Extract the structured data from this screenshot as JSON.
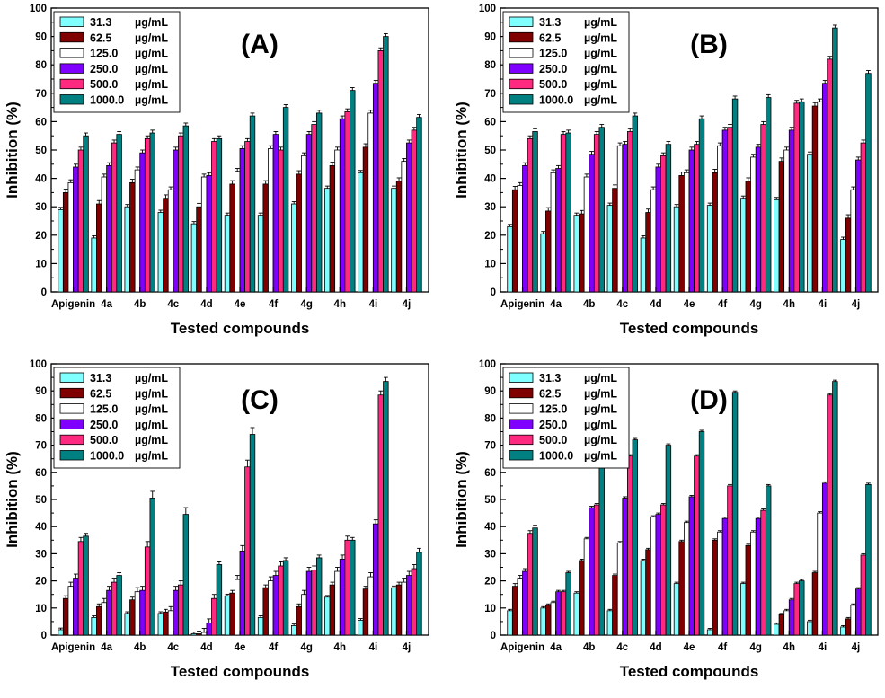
{
  "figure": {
    "legend_entries": [
      {
        "conc": "31.3",
        "unit": "µg/mL"
      },
      {
        "conc": "62.5",
        "unit": "µg/mL"
      },
      {
        "conc": "125.0",
        "unit": "µg/mL"
      },
      {
        "conc": "250.0",
        "unit": "µg/mL"
      },
      {
        "conc": "500.0",
        "unit": "µg/mL"
      },
      {
        "conc": "1000.0",
        "unit": "µg/mL"
      }
    ],
    "series_colors": [
      "#7fffff",
      "#800000",
      "#ffffff",
      "#7f00ff",
      "#ff2a7f",
      "#008080"
    ]
  },
  "chart_data": [
    {
      "type": "bar",
      "panel_label": "(A)",
      "xlabel": "Tested compounds",
      "ylabel": "Inhibition (%)",
      "ylim": [
        0,
        100
      ],
      "yticks": [
        "0",
        "10",
        "20",
        "30",
        "40",
        "50",
        "60",
        "70",
        "80",
        "90",
        "100"
      ],
      "categories": [
        "Apigenin",
        "4a",
        "4b",
        "4c",
        "4d",
        "4e",
        "4f",
        "4g",
        "4h",
        "4i",
        "4j"
      ],
      "series": [
        {
          "name": "31.3 µg/mL",
          "values": [
            29,
            19,
            30,
            28,
            24,
            27,
            27,
            31,
            36.5,
            42,
            36.5
          ],
          "errors": [
            0.8,
            0.8,
            0.8,
            0.8,
            0.8,
            0.8,
            0.8,
            0.8,
            0.8,
            0.8,
            0.8
          ]
        },
        {
          "name": "62.5 µg/mL",
          "values": [
            35,
            31,
            38.5,
            33,
            30,
            38,
            38,
            41.5,
            44.5,
            51,
            39
          ],
          "errors": [
            1.2,
            1.2,
            1.2,
            1.2,
            1.2,
            1.2,
            1.2,
            1.2,
            1.2,
            1.2,
            1.2
          ]
        },
        {
          "name": "125.0 µg/mL",
          "values": [
            38.5,
            40.5,
            43,
            36,
            40.5,
            42.5,
            50.5,
            48,
            50,
            63,
            46
          ],
          "errors": [
            1,
            1,
            1,
            1,
            1,
            1,
            1,
            1,
            1,
            1,
            1
          ]
        },
        {
          "name": "250.0 µg/mL",
          "values": [
            44,
            44.5,
            49,
            50,
            41,
            50.5,
            55.5,
            55.5,
            61,
            73.5,
            52.5
          ],
          "errors": [
            1,
            1,
            1,
            1,
            1,
            1,
            1,
            1,
            1,
            1,
            1
          ]
        },
        {
          "name": "500.0 µg/mL",
          "values": [
            50,
            52.5,
            54,
            55,
            53,
            53,
            50,
            59,
            63.5,
            85,
            57
          ],
          "errors": [
            1,
            1,
            1,
            1,
            1,
            1,
            1,
            1,
            1,
            1,
            1
          ]
        },
        {
          "name": "1000.0 µg/mL",
          "values": [
            55,
            55.5,
            56,
            58.5,
            54,
            62,
            65,
            63,
            71,
            90,
            61.5
          ],
          "errors": [
            1,
            1,
            1,
            1,
            1,
            1,
            1,
            1,
            1,
            1,
            1
          ]
        }
      ]
    },
    {
      "type": "bar",
      "panel_label": "(B)",
      "xlabel": "Tested compounds",
      "ylabel": "Inhibition (%)",
      "ylim": [
        0,
        100
      ],
      "yticks": [
        "0",
        "10",
        "20",
        "30",
        "40",
        "50",
        "60",
        "70",
        "80",
        "90",
        "100"
      ],
      "categories": [
        "Apigenin",
        "4a",
        "4b",
        "4c",
        "4d",
        "4e",
        "4f",
        "4g",
        "4h",
        "4i",
        "4j"
      ],
      "series": [
        {
          "name": "31.3 µg/mL",
          "values": [
            23,
            20.5,
            27,
            30.5,
            19,
            30,
            30.5,
            33,
            32.5,
            48.5,
            18.5
          ],
          "errors": [
            0.8,
            0.8,
            0.8,
            0.8,
            0.8,
            0.8,
            0.8,
            0.8,
            0.8,
            0.8,
            0.8
          ]
        },
        {
          "name": "62.5 µg/mL",
          "values": [
            36,
            28.5,
            27.5,
            36.5,
            28,
            41,
            42,
            39,
            46,
            65.5,
            26
          ],
          "errors": [
            1.2,
            1.2,
            1.2,
            1.2,
            1.2,
            1.2,
            1.2,
            1.2,
            1.2,
            1.2,
            1.2
          ]
        },
        {
          "name": "125.0 µg/mL",
          "values": [
            37.5,
            42,
            40.5,
            51.5,
            36,
            42,
            51.5,
            47.5,
            50,
            67,
            36
          ],
          "errors": [
            1,
            1,
            1,
            1,
            1,
            1,
            1,
            1,
            1,
            1,
            1
          ]
        },
        {
          "name": "250.0 µg/mL",
          "values": [
            44.5,
            43.5,
            48.5,
            52,
            44,
            50,
            57,
            51,
            57,
            73.5,
            46.5
          ],
          "errors": [
            1,
            1,
            1,
            1,
            1,
            1,
            1,
            1,
            1,
            1,
            1
          ]
        },
        {
          "name": "500.0 µg/mL",
          "values": [
            54,
            55.5,
            55.5,
            56.5,
            48,
            52,
            58,
            59,
            66.5,
            82,
            52.5
          ],
          "errors": [
            1,
            1,
            1,
            1,
            1,
            1,
            1,
            1,
            1,
            1,
            1
          ]
        },
        {
          "name": "1000.0 µg/mL",
          "values": [
            56.5,
            56,
            58,
            62,
            52,
            61,
            68,
            68.5,
            67,
            93,
            77
          ],
          "errors": [
            1,
            1,
            1,
            1,
            1,
            1,
            1,
            1,
            1,
            1,
            1
          ]
        }
      ]
    },
    {
      "type": "bar",
      "panel_label": "(C)",
      "xlabel": "Tested compounds",
      "ylabel": "Inhibition (%)",
      "ylim": [
        0,
        100
      ],
      "yticks": [
        "0",
        "10",
        "20",
        "30",
        "40",
        "50",
        "60",
        "70",
        "80",
        "90",
        "100"
      ],
      "categories": [
        "Apigenin",
        "4a",
        "4b",
        "4c",
        "4d",
        "4e",
        "4f",
        "4g",
        "4h",
        "4i",
        "4j"
      ],
      "series": [
        {
          "name": "31.3 µg/mL",
          "values": [
            2,
            6.5,
            8,
            8,
            0.5,
            14.5,
            6.5,
            3.5,
            14,
            5.5,
            17.5
          ],
          "errors": [
            0.6,
            0.6,
            0.6,
            0.6,
            0.6,
            0.6,
            0.6,
            0.6,
            0.6,
            0.6,
            0.6
          ]
        },
        {
          "name": "62.5 µg/mL",
          "values": [
            13.5,
            10.5,
            13,
            8.5,
            0.5,
            15.5,
            17.5,
            10.5,
            18.5,
            17,
            18.5
          ],
          "errors": [
            1,
            1,
            1,
            1,
            1,
            1,
            1,
            1,
            1,
            1,
            1
          ]
        },
        {
          "name": "125.0 µg/mL",
          "values": [
            18,
            12,
            16,
            9,
            1,
            20.5,
            20,
            15,
            23.5,
            21.5,
            19.5
          ],
          "errors": [
            1.5,
            1.5,
            1.5,
            1.5,
            1.5,
            1.5,
            1.5,
            1.5,
            1.5,
            1.5,
            1.5
          ]
        },
        {
          "name": "250.0 µg/mL",
          "values": [
            21,
            16.5,
            16.5,
            16.5,
            4.5,
            31,
            22,
            23.5,
            28,
            41,
            22
          ],
          "errors": [
            1.5,
            1.5,
            1.5,
            1.5,
            1.5,
            2,
            1.5,
            1.5,
            1.5,
            1.5,
            1.5
          ]
        },
        {
          "name": "500.0 µg/mL",
          "values": [
            34.5,
            19.5,
            32.5,
            18.5,
            13.5,
            62,
            25.5,
            24,
            35,
            88.5,
            24.5
          ],
          "errors": [
            1.5,
            1.5,
            2,
            1.5,
            1.5,
            2.5,
            1.5,
            1.5,
            1.5,
            1.5,
            1.5
          ]
        },
        {
          "name": "1000.0 µg/mL",
          "values": [
            36.5,
            22,
            50.5,
            44.5,
            26,
            74,
            27.5,
            28.5,
            35,
            93.5,
            30.5
          ],
          "errors": [
            1,
            1,
            2.5,
            2.5,
            1,
            2.5,
            1,
            1,
            1,
            1.5,
            1.5
          ]
        }
      ]
    },
    {
      "type": "bar",
      "panel_label": "(D)",
      "xlabel": "Tested compounds",
      "ylabel": "Inhibition (%)",
      "ylim": [
        0,
        100
      ],
      "yticks": [
        "0",
        "10",
        "20",
        "30",
        "40",
        "50",
        "60",
        "70",
        "80",
        "90",
        "100"
      ],
      "categories": [
        "Apigenin",
        "4a",
        "4b",
        "4c",
        "4d",
        "4e",
        "4f",
        "4g",
        "4h",
        "4i",
        "4j"
      ],
      "series": [
        {
          "name": "31.3 µg/mL",
          "values": [
            9,
            10,
            15.5,
            9,
            27.5,
            19,
            2,
            19,
            4,
            5,
            3
          ],
          "errors": [
            0.5,
            0.5,
            0.5,
            0.5,
            0.5,
            0.5,
            0.5,
            0.5,
            0.5,
            0.5,
            0.5
          ]
        },
        {
          "name": "62.5 µg/mL",
          "values": [
            18,
            11,
            27.5,
            22,
            31.5,
            34.5,
            35,
            33,
            7.5,
            23,
            6
          ],
          "errors": [
            1,
            0.5,
            0.5,
            0.5,
            0.5,
            0.5,
            0.5,
            0.5,
            0.5,
            0.5,
            0.5
          ]
        },
        {
          "name": "125.0 µg/mL",
          "values": [
            21,
            12,
            35.5,
            34,
            43.5,
            41.5,
            38,
            38,
            9,
            45,
            11
          ],
          "errors": [
            1,
            0.5,
            0.5,
            0.5,
            0.5,
            0.5,
            0.5,
            0.5,
            0.5,
            0.5,
            0.5
          ]
        },
        {
          "name": "250.0 µg/mL",
          "values": [
            23.5,
            16,
            47,
            50.5,
            44.5,
            51,
            43,
            43,
            13,
            56,
            17
          ],
          "errors": [
            1,
            0.5,
            0.5,
            0.5,
            0.5,
            0.5,
            0.5,
            0.5,
            0.5,
            0.5,
            0.5
          ]
        },
        {
          "name": "500.0 µg/mL",
          "values": [
            37.5,
            16,
            48,
            66,
            48,
            66,
            55,
            46,
            19,
            88.5,
            29.5
          ],
          "errors": [
            1,
            0.5,
            0.5,
            0.5,
            0.5,
            0.5,
            0.5,
            0.5,
            0.5,
            0.5,
            0.5
          ]
        },
        {
          "name": "1000.0 µg/mL",
          "values": [
            39.5,
            23,
            62,
            72,
            70,
            75,
            89.5,
            55,
            20,
            93.5,
            55.5
          ],
          "errors": [
            1,
            0.5,
            0.5,
            0.5,
            0.5,
            0.5,
            0.5,
            0.5,
            0.5,
            0.5,
            0.5
          ]
        }
      ]
    }
  ]
}
